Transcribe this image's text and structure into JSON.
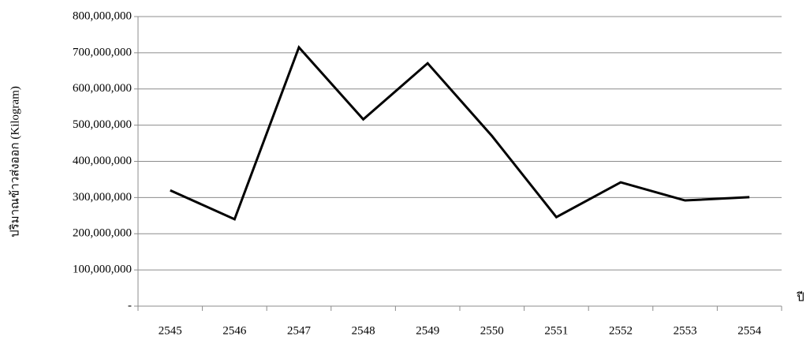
{
  "chart_data": {
    "type": "line",
    "y_label": "ปริมาณข้าวส่งออก (Kilogram)",
    "x_label": "ปี",
    "categories": [
      "2545",
      "2546",
      "2547",
      "2548",
      "2549",
      "2550",
      "2551",
      "2552",
      "2553",
      "2554"
    ],
    "series": [
      {
        "color": "#000000",
        "values": [
          320000000,
          240000000,
          715000000,
          516000000,
          671000000,
          470000000,
          246000000,
          342000000,
          292000000,
          301000000
        ]
      }
    ],
    "ylim": [
      0,
      800000000
    ],
    "yticks": [
      {
        "value": 0,
        "label": "-"
      },
      {
        "value": 100000000,
        "label": "100,000,000"
      },
      {
        "value": 200000000,
        "label": "200,000,000"
      },
      {
        "value": 300000000,
        "label": "300,000,000"
      },
      {
        "value": 400000000,
        "label": "400,000,000"
      },
      {
        "value": 500000000,
        "label": "500,000,000"
      },
      {
        "value": 600000000,
        "label": "600,000,000"
      },
      {
        "value": 700000000,
        "label": "700,000,000"
      },
      {
        "value": 800000000,
        "label": "800,000,000"
      }
    ],
    "grid": true
  }
}
